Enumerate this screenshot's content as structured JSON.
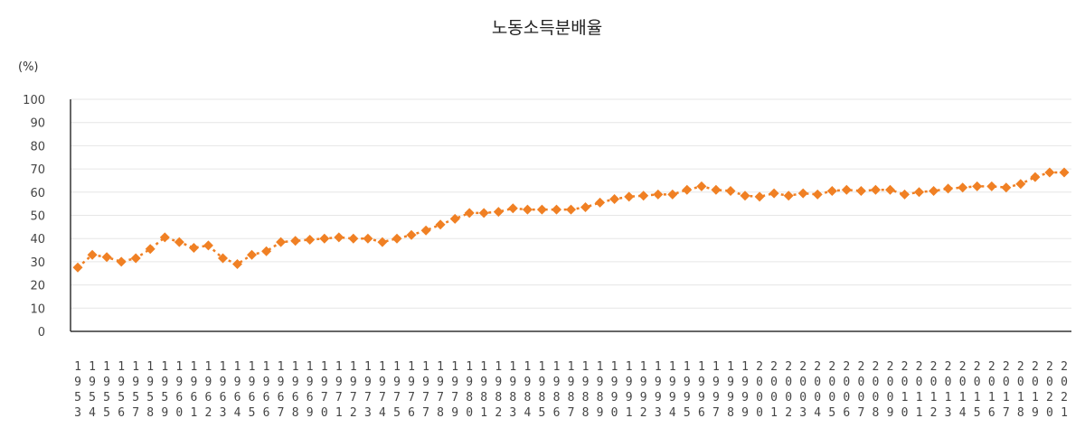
{
  "chart_data": {
    "type": "line",
    "title": "노동소득분배율",
    "y_unit": "(%)",
    "ylim": [
      0,
      100
    ],
    "y_ticks": [
      0,
      10,
      20,
      30,
      40,
      50,
      60,
      70,
      80,
      90,
      100
    ],
    "grid": true,
    "legend": "none",
    "series_color": "#F08024",
    "x": [
      1953,
      1954,
      1955,
      1956,
      1957,
      1958,
      1959,
      1960,
      1961,
      1962,
      1963,
      1964,
      1965,
      1966,
      1967,
      1968,
      1969,
      1970,
      1971,
      1972,
      1973,
      1974,
      1975,
      1976,
      1977,
      1978,
      1979,
      1980,
      1981,
      1982,
      1983,
      1984,
      1985,
      1986,
      1987,
      1988,
      1989,
      1990,
      1991,
      1992,
      1993,
      1994,
      1995,
      1996,
      1997,
      1998,
      1999,
      2000,
      2001,
      2002,
      2003,
      2004,
      2005,
      2006,
      2007,
      2008,
      2009,
      2010,
      2011,
      2012,
      2013,
      2014,
      2015,
      2016,
      2017,
      2018,
      2019,
      2020,
      2021
    ],
    "values": [
      27.5,
      33,
      32,
      30,
      31.5,
      35.5,
      40.5,
      38.5,
      36,
      37,
      31.5,
      29,
      33,
      34.5,
      38.5,
      39,
      39.5,
      40,
      40.5,
      40,
      40,
      38.5,
      40,
      41.5,
      43.5,
      46,
      48.5,
      51,
      51,
      51.5,
      53,
      52.5,
      52.5,
      52.5,
      52.5,
      53.5,
      55.5,
      57,
      58,
      58.5,
      59,
      59,
      61,
      62.5,
      61,
      60.5,
      58.5,
      58,
      59.5,
      58.5,
      59.5,
      59,
      60.5,
      61,
      60.5,
      61,
      61,
      59,
      60,
      60.5,
      61.5,
      62,
      62.5,
      62.5,
      62,
      63.5,
      66.5,
      68.5,
      68.5
    ]
  }
}
